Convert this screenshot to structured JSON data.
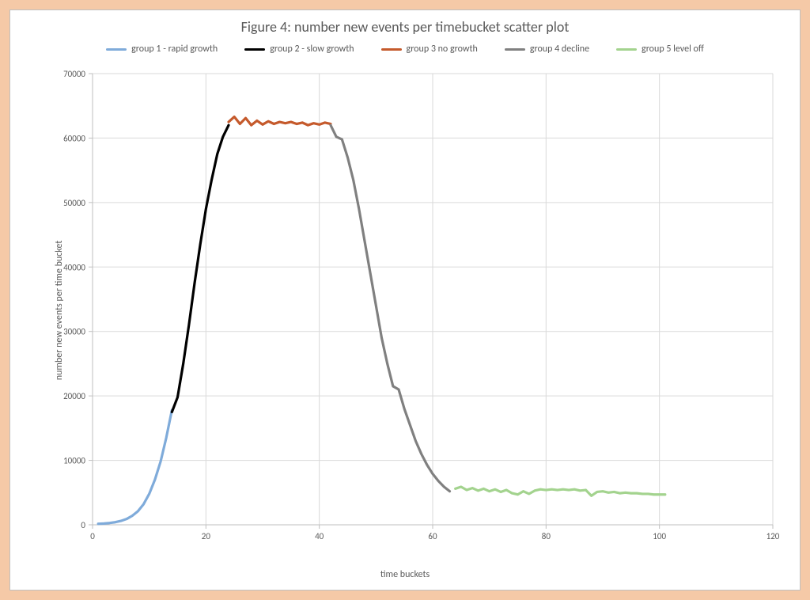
{
  "chart": {
    "type": "line",
    "title": "Figure 4: number new events per timebucket scatter plot",
    "title_fontsize": 18,
    "xlabel": "time buckets",
    "ylabel": "number new events per time bucket",
    "label_fontsize": 12,
    "tick_fontsize": 11,
    "background_color": "#ffffff",
    "outer_background_color": "#f5c9a7",
    "grid_color": "#d9d9d9",
    "axis_color": "#bfbfbf",
    "text_color": "#595959",
    "xlim": [
      0,
      120
    ],
    "ylim": [
      0,
      70000
    ],
    "x_ticks": [
      0,
      20,
      40,
      60,
      80,
      100,
      120
    ],
    "y_ticks": [
      0,
      10000,
      20000,
      30000,
      40000,
      50000,
      60000,
      70000
    ],
    "line_width": 3.2,
    "legend_position": "top-center",
    "legend": [
      {
        "label": "group 1 - rapid growth",
        "color": "#7fabda"
      },
      {
        "label": "group 2 - slow  growth",
        "color": "#000000"
      },
      {
        "label": "group 3 no growth",
        "color": "#c55a2c"
      },
      {
        "label": "group 4 decline",
        "color": "#808080"
      },
      {
        "label": "group 5 level off",
        "color": "#a3d38e"
      }
    ],
    "series": [
      {
        "name": "group 1 - rapid growth",
        "color": "#7fabda",
        "points": [
          [
            1,
            150
          ],
          [
            2,
            200
          ],
          [
            3,
            280
          ],
          [
            4,
            400
          ],
          [
            5,
            600
          ],
          [
            6,
            900
          ],
          [
            7,
            1400
          ],
          [
            8,
            2100
          ],
          [
            9,
            3200
          ],
          [
            10,
            4800
          ],
          [
            11,
            7000
          ],
          [
            12,
            9800
          ],
          [
            13,
            13500
          ],
          [
            14,
            17800
          ]
        ]
      },
      {
        "name": "group 2 - slow growth",
        "color": "#000000",
        "points": [
          [
            14,
            17500
          ],
          [
            15,
            19800
          ],
          [
            16,
            25000
          ],
          [
            17,
            31000
          ],
          [
            18,
            37500
          ],
          [
            19,
            43500
          ],
          [
            20,
            49000
          ],
          [
            21,
            53500
          ],
          [
            22,
            57500
          ],
          [
            23,
            60200
          ],
          [
            24,
            62000
          ]
        ]
      },
      {
        "name": "group 3 no growth",
        "color": "#c55a2c",
        "points": [
          [
            24,
            62500
          ],
          [
            25,
            63300
          ],
          [
            26,
            62200
          ],
          [
            27,
            63100
          ],
          [
            28,
            62000
          ],
          [
            29,
            62700
          ],
          [
            30,
            62100
          ],
          [
            31,
            62600
          ],
          [
            32,
            62200
          ],
          [
            33,
            62500
          ],
          [
            34,
            62300
          ],
          [
            35,
            62500
          ],
          [
            36,
            62200
          ],
          [
            37,
            62400
          ],
          [
            38,
            62000
          ],
          [
            39,
            62300
          ],
          [
            40,
            62100
          ],
          [
            41,
            62400
          ],
          [
            42,
            62200
          ]
        ]
      },
      {
        "name": "group 4 decline",
        "color": "#808080",
        "points": [
          [
            42,
            62000
          ],
          [
            43,
            60200
          ],
          [
            44,
            59800
          ],
          [
            45,
            57000
          ],
          [
            46,
            53500
          ],
          [
            47,
            49000
          ],
          [
            48,
            44000
          ],
          [
            49,
            39000
          ],
          [
            50,
            34000
          ],
          [
            51,
            29000
          ],
          [
            52,
            25000
          ],
          [
            53,
            21500
          ],
          [
            54,
            21000
          ],
          [
            55,
            18000
          ],
          [
            56,
            15500
          ],
          [
            57,
            13000
          ],
          [
            58,
            11000
          ],
          [
            59,
            9300
          ],
          [
            60,
            7900
          ],
          [
            61,
            6800
          ],
          [
            62,
            5900
          ],
          [
            63,
            5200
          ]
        ]
      },
      {
        "name": "group 5 level off",
        "color": "#a3d38e",
        "points": [
          [
            64,
            5600
          ],
          [
            65,
            5900
          ],
          [
            66,
            5400
          ],
          [
            67,
            5700
          ],
          [
            68,
            5300
          ],
          [
            69,
            5600
          ],
          [
            70,
            5200
          ],
          [
            71,
            5500
          ],
          [
            72,
            5100
          ],
          [
            73,
            5400
          ],
          [
            74,
            4900
          ],
          [
            75,
            4700
          ],
          [
            76,
            5200
          ],
          [
            77,
            4800
          ],
          [
            78,
            5300
          ],
          [
            79,
            5500
          ],
          [
            80,
            5400
          ],
          [
            81,
            5500
          ],
          [
            82,
            5400
          ],
          [
            83,
            5500
          ],
          [
            84,
            5400
          ],
          [
            85,
            5500
          ],
          [
            86,
            5300
          ],
          [
            87,
            5400
          ],
          [
            88,
            4500
          ],
          [
            89,
            5100
          ],
          [
            90,
            5200
          ],
          [
            91,
            5000
          ],
          [
            92,
            5100
          ],
          [
            93,
            4900
          ],
          [
            94,
            5000
          ],
          [
            95,
            4900
          ],
          [
            96,
            4900
          ],
          [
            97,
            4800
          ],
          [
            98,
            4800
          ],
          [
            99,
            4700
          ],
          [
            100,
            4700
          ],
          [
            101,
            4700
          ]
        ]
      }
    ]
  }
}
